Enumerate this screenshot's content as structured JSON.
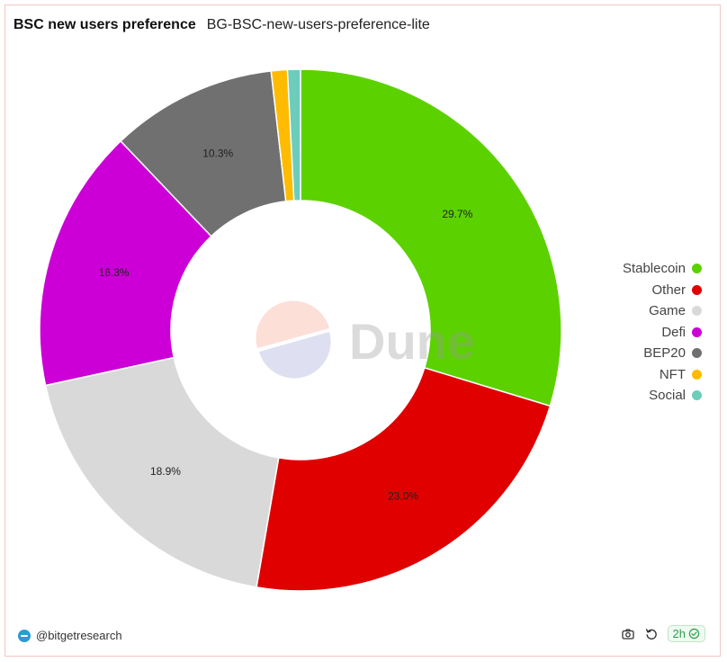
{
  "header": {
    "title": "BSC new users preference",
    "subtitle": "BG-BSC-new-users-preference-lite"
  },
  "chart_data": {
    "type": "pie",
    "title": "BSC new users preference",
    "subtitle": "BG-BSC-new-users-preference-lite",
    "donut": true,
    "legend_position": "right",
    "slices": [
      {
        "label": "Stablecoin",
        "value": 29.7,
        "display": "29.7%",
        "color": "#5cd100"
      },
      {
        "label": "Other",
        "value": 23.0,
        "display": "23.0%",
        "color": "#e00000"
      },
      {
        "label": "Game",
        "value": 18.9,
        "display": "18.9%",
        "color": "#d9d9d9"
      },
      {
        "label": "Defi",
        "value": 16.3,
        "display": "16.3%",
        "color": "#cc00d6"
      },
      {
        "label": "BEP20",
        "value": 10.3,
        "display": "10.3%",
        "color": "#707070"
      },
      {
        "label": "NFT",
        "value": 1.0,
        "display": "",
        "color": "#ffbb00"
      },
      {
        "label": "Social",
        "value": 0.8,
        "display": "",
        "color": "#6ccdbb"
      }
    ]
  },
  "watermark": {
    "text": "Dune"
  },
  "footer": {
    "author": "@bitgetresearch",
    "refresh_label": "2h",
    "camera_icon": "camera-icon",
    "refresh_icon": "refresh-icon",
    "check_icon": "check-circle-icon"
  }
}
